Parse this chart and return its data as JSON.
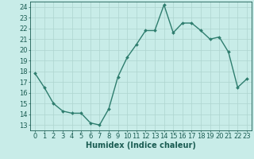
{
  "x": [
    0,
    1,
    2,
    3,
    4,
    5,
    6,
    7,
    8,
    9,
    10,
    11,
    12,
    13,
    14,
    15,
    16,
    17,
    18,
    19,
    20,
    21,
    22,
    23
  ],
  "y": [
    17.8,
    16.5,
    15.0,
    14.3,
    14.1,
    14.1,
    13.2,
    13.0,
    14.5,
    17.5,
    19.3,
    20.5,
    21.8,
    21.8,
    24.2,
    21.6,
    22.5,
    22.5,
    21.8,
    21.0,
    21.2,
    19.8,
    16.5,
    17.3
  ],
  "line_color": "#2e7d6e",
  "marker": "D",
  "marker_size": 2,
  "bg_color": "#c8ece8",
  "grid_color": "#aed4cf",
  "xlabel": "Humidex (Indice chaleur)",
  "xlim": [
    -0.5,
    23.5
  ],
  "ylim": [
    12.5,
    24.5
  ],
  "yticks": [
    13,
    14,
    15,
    16,
    17,
    18,
    19,
    20,
    21,
    22,
    23,
    24
  ],
  "xticks": [
    0,
    1,
    2,
    3,
    4,
    5,
    6,
    7,
    8,
    9,
    10,
    11,
    12,
    13,
    14,
    15,
    16,
    17,
    18,
    19,
    20,
    21,
    22,
    23
  ],
  "label_color": "#1a5c52",
  "tick_color": "#1a5c52",
  "xlabel_fontsize": 7,
  "tick_fontsize": 6,
  "line_width": 1.0
}
